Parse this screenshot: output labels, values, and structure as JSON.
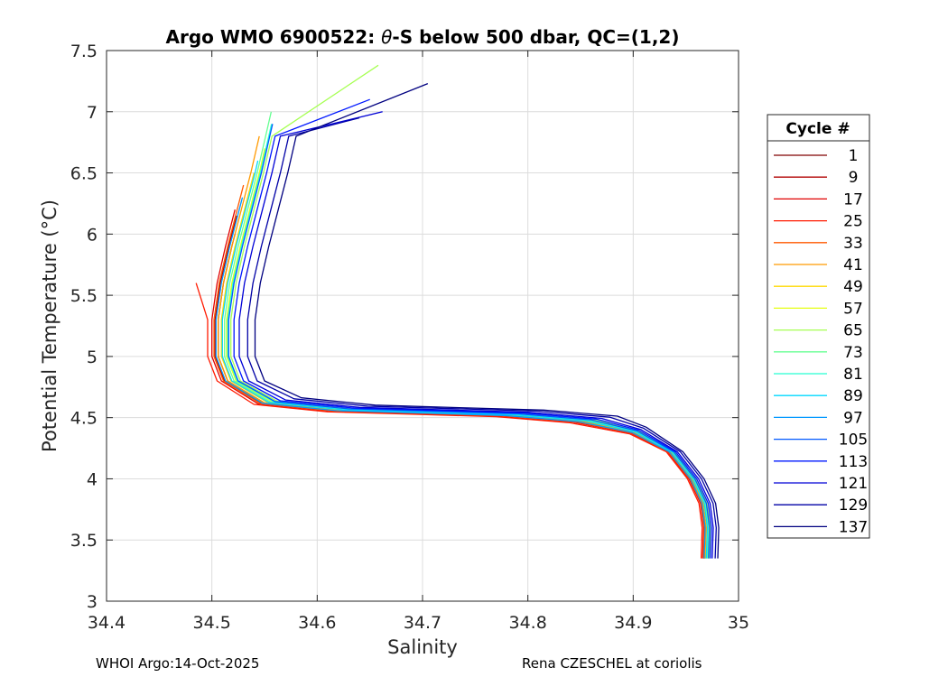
{
  "chart_data": {
    "type": "line",
    "title_prefix": "Argo WMO 6900522: ",
    "title_symbol": "θ",
    "title_suffix": "-S below 500 dbar,  QC=(1,2)",
    "xlabel": "Salinity",
    "ylabel": "Potential Temperature (°C)",
    "xlim": [
      34.4,
      35
    ],
    "ylim": [
      3,
      7.5
    ],
    "xticks": [
      "34.4",
      "34.5",
      "34.6",
      "34.7",
      "34.8",
      "34.9",
      "35"
    ],
    "yticks": [
      "3",
      "3.5",
      "4",
      "4.5",
      "5",
      "5.5",
      "6",
      "6.5",
      "7",
      "7.5"
    ],
    "grid": true,
    "legend": {
      "title": "Cycle #",
      "placement": "outside-right",
      "entries": [
        {
          "label": "1",
          "color": "#800000"
        },
        {
          "label": "9",
          "color": "#b00000"
        },
        {
          "label": "17",
          "color": "#e00000"
        },
        {
          "label": "25",
          "color": "#ff1a00"
        },
        {
          "label": "33",
          "color": "#ff5a00"
        },
        {
          "label": "41",
          "color": "#ff9a00"
        },
        {
          "label": "49",
          "color": "#ffda00"
        },
        {
          "label": "57",
          "color": "#e6ff12"
        },
        {
          "label": "65",
          "color": "#a6ff52"
        },
        {
          "label": "73",
          "color": "#66ff92"
        },
        {
          "label": "81",
          "color": "#26ffd2"
        },
        {
          "label": "89",
          "color": "#00d8ff"
        },
        {
          "label": "97",
          "color": "#0098ff"
        },
        {
          "label": "105",
          "color": "#0058ff"
        },
        {
          "label": "113",
          "color": "#0018ff"
        },
        {
          "label": "121",
          "color": "#0000d6"
        },
        {
          "label": "129",
          "color": "#0000a6"
        },
        {
          "label": "137",
          "color": "#000080"
        }
      ]
    },
    "base_profile": {
      "s": [
        34.545,
        34.537,
        34.528,
        34.519,
        34.511,
        34.506,
        34.506,
        34.515,
        34.55,
        34.62,
        34.7,
        34.78,
        34.85,
        34.9,
        34.935,
        34.955,
        34.966,
        34.969,
        34.968
      ],
      "t": [
        6.8,
        6.5,
        6.2,
        5.9,
        5.6,
        5.3,
        5.0,
        4.8,
        4.62,
        4.56,
        4.54,
        4.52,
        4.47,
        4.38,
        4.22,
        4.0,
        3.8,
        3.6,
        3.35
      ]
    },
    "series": [
      {
        "name": "1",
        "ds": 0.0,
        "top_t": 6.0,
        "top_s": null
      },
      {
        "name": "9",
        "ds": -0.003,
        "top_t": 6.15,
        "top_s": null
      },
      {
        "name": "17",
        "ds": -0.006,
        "top_t": 6.2,
        "top_s": null
      },
      {
        "name": "25",
        "ds": -0.01,
        "top_t": 5.6,
        "top_s": 34.485
      },
      {
        "name": "33",
        "ds": -0.004,
        "top_t": 6.4,
        "top_s": null
      },
      {
        "name": "41",
        "ds": 0.0,
        "top_t": 6.8,
        "top_s": null
      },
      {
        "name": "49",
        "ds": 0.003,
        "top_t": 6.5,
        "top_s": null
      },
      {
        "name": "57",
        "ds": 0.008,
        "top_t": 6.7,
        "top_s": null
      },
      {
        "name": "65",
        "ds": 0.012,
        "top_t": 7.38,
        "top_s": 34.658
      },
      {
        "name": "73",
        "ds": 0.006,
        "top_t": 7.0,
        "top_s": null
      },
      {
        "name": "81",
        "ds": 0.009,
        "top_t": 6.9,
        "top_s": null
      },
      {
        "name": "89",
        "ds": 0.004,
        "top_t": 6.6,
        "top_s": null
      },
      {
        "name": "97",
        "ds": -0.002,
        "top_t": 6.3,
        "top_s": null
      },
      {
        "name": "105",
        "ds": 0.01,
        "top_t": 6.9,
        "top_s": null
      },
      {
        "name": "113",
        "ds": 0.015,
        "top_t": 7.1,
        "top_s": 34.65
      },
      {
        "name": "121",
        "ds": 0.02,
        "top_t": 7.0,
        "top_s": 34.662
      },
      {
        "name": "129",
        "ds": 0.028,
        "top_t": 6.95,
        "top_s": 34.64
      },
      {
        "name": "137",
        "ds": 0.035,
        "top_t": 7.23,
        "top_s": 34.705
      }
    ]
  },
  "footer": {
    "left": "WHOI Argo:14-Oct-2025",
    "right": "Rena CZESCHEL at coriolis"
  }
}
